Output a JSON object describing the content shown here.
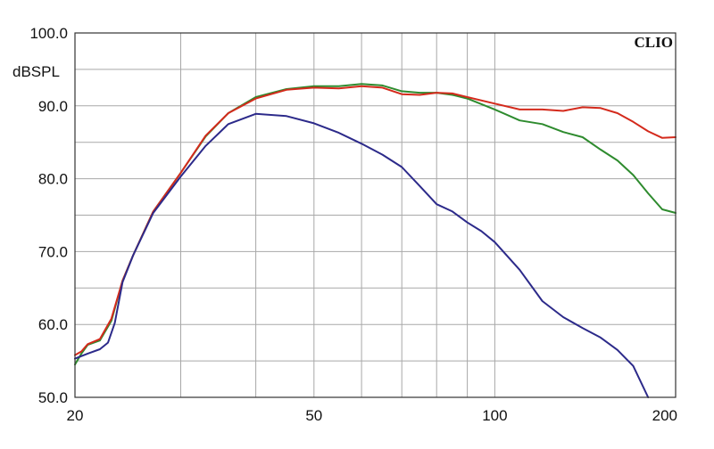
{
  "chart_data": {
    "type": "line",
    "brand": "CLIO",
    "ylabel": "dBSPL",
    "xlabel": "",
    "x_scale": "log",
    "xlim": [
      20,
      200
    ],
    "ylim": [
      50,
      100
    ],
    "grid": true,
    "x_ticks": [
      20,
      30,
      40,
      50,
      60,
      70,
      80,
      90,
      100,
      200
    ],
    "x_tick_labels": [
      "20",
      "50",
      "100",
      "200"
    ],
    "y_ticks": [
      50,
      55,
      60,
      65,
      70,
      75,
      80,
      85,
      90,
      95,
      100
    ],
    "y_tick_labels": [
      "100.0",
      "90.0",
      "80.0",
      "70.0",
      "60.0",
      "50.0"
    ],
    "colors": {
      "red": "#d42a1c",
      "green": "#2e8b2e",
      "blue": "#2c2a8a"
    },
    "series": [
      {
        "color": "#2e8b2e",
        "x": [
          20,
          20.5,
          21,
          22,
          23,
          24,
          25,
          27,
          30,
          33,
          36,
          40,
          45,
          50,
          55,
          60,
          65,
          70,
          75,
          80,
          85,
          90,
          100,
          110,
          120,
          130,
          140,
          150,
          160,
          170,
          180,
          190,
          200
        ],
        "y": [
          54.5,
          56.0,
          57.2,
          57.8,
          60.5,
          66.0,
          69.5,
          75.5,
          80.8,
          85.8,
          89.0,
          91.2,
          92.3,
          92.7,
          92.7,
          93.0,
          92.8,
          92.0,
          91.8,
          91.8,
          91.5,
          91.0,
          89.5,
          88.0,
          87.5,
          86.4,
          85.7,
          84.0,
          82.5,
          80.5,
          78.0,
          75.8,
          75.3
        ]
      },
      {
        "color": "#d42a1c",
        "x": [
          20,
          20.5,
          21,
          22,
          23,
          24,
          25,
          27,
          30,
          33,
          36,
          40,
          45,
          50,
          55,
          60,
          65,
          70,
          75,
          80,
          85,
          90,
          100,
          110,
          120,
          130,
          140,
          150,
          160,
          170,
          180,
          190,
          200
        ],
        "y": [
          55.8,
          56.3,
          57.3,
          58.0,
          60.8,
          66.0,
          69.5,
          75.5,
          80.8,
          85.9,
          89.0,
          91.0,
          92.2,
          92.5,
          92.4,
          92.7,
          92.5,
          91.6,
          91.5,
          91.8,
          91.7,
          91.2,
          90.3,
          89.5,
          89.5,
          89.3,
          89.8,
          89.7,
          89.0,
          87.8,
          86.5,
          85.6,
          85.7
        ]
      },
      {
        "color": "#2c2a8a",
        "x": [
          20,
          21,
          22,
          22.7,
          23.3,
          24,
          25,
          27,
          30,
          33,
          36,
          40,
          45,
          50,
          55,
          60,
          65,
          70,
          75,
          80,
          85,
          90,
          95,
          100,
          110,
          120,
          130,
          140,
          150,
          160,
          170,
          180
        ],
        "y": [
          55.3,
          56.0,
          56.6,
          57.5,
          60.2,
          65.8,
          69.5,
          75.3,
          80.3,
          84.5,
          87.5,
          88.9,
          88.6,
          87.6,
          86.3,
          84.8,
          83.3,
          81.6,
          79.0,
          76.5,
          75.5,
          74.0,
          72.8,
          71.3,
          67.5,
          63.2,
          61.0,
          59.5,
          58.2,
          56.5,
          54.3,
          50.0
        ]
      }
    ]
  }
}
